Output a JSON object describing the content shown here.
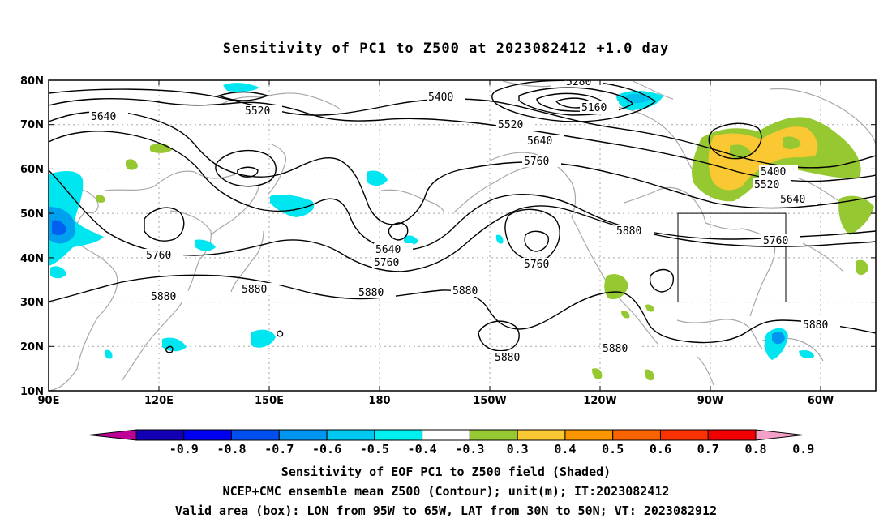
{
  "title": "Sensitivity of PC1 to Z500 at 2023082412 +1.0 day",
  "axes": {
    "lat_labels": [
      "80N",
      "70N",
      "60N",
      "50N",
      "40N",
      "30N",
      "20N",
      "10N"
    ],
    "lon_labels": [
      "90E",
      "120E",
      "150E",
      "180",
      "150W",
      "120W",
      "90W",
      "60W"
    ]
  },
  "contour_labels": {
    "c5640a": "5640",
    "c5520a": "5520",
    "c5400a": "5400",
    "c5280": "5280",
    "c5160": "5160",
    "c5520b": "5520",
    "c5640b": "5640",
    "c5760a": "5760",
    "c5400b": "5400",
    "c5520c": "5520",
    "c5640c": "5640",
    "c5880a": "5880",
    "c5760b": "5760",
    "c5760c": "5760",
    "c5640d": "5640",
    "c5760d": "5760",
    "c5760e": "5760",
    "c5880b": "5880",
    "c5880c": "5880",
    "c5880d": "5880",
    "c5880e": "5880",
    "c5880f": "5880",
    "c5880g": "5880",
    "c5880h": "5880"
  },
  "colorbar": {
    "labels": [
      "-0.9",
      "-0.8",
      "-0.7",
      "-0.6",
      "-0.5",
      "-0.4",
      "-0.3",
      "0.3",
      "0.4",
      "0.5",
      "0.6",
      "0.7",
      "0.8",
      "0.9"
    ],
    "colors": [
      "#bf0096",
      "#1400b4",
      "#0000f0",
      "#0050f0",
      "#0096f0",
      "#00c8f0",
      "#00f0f0",
      "#ffffff",
      "#96c832",
      "#fac832",
      "#fa9600",
      "#fa6400",
      "#fa3200",
      "#f00000",
      "#f5a0c8"
    ]
  },
  "valid_box": {
    "lon_from": "95W",
    "lon_to": "65W",
    "lat_from": "30N",
    "lat_to": "50N"
  },
  "caption": {
    "line1": "Sensitivity of EOF PC1 to Z500 field (Shaded)",
    "line2": "NCEP+CMC ensemble mean Z500 (Contour); unit(m); IT:2023082412",
    "line3": "Valid area (box): LON from 95W to 65W, LAT from 30N to 50N; VT: 2023082912"
  }
}
